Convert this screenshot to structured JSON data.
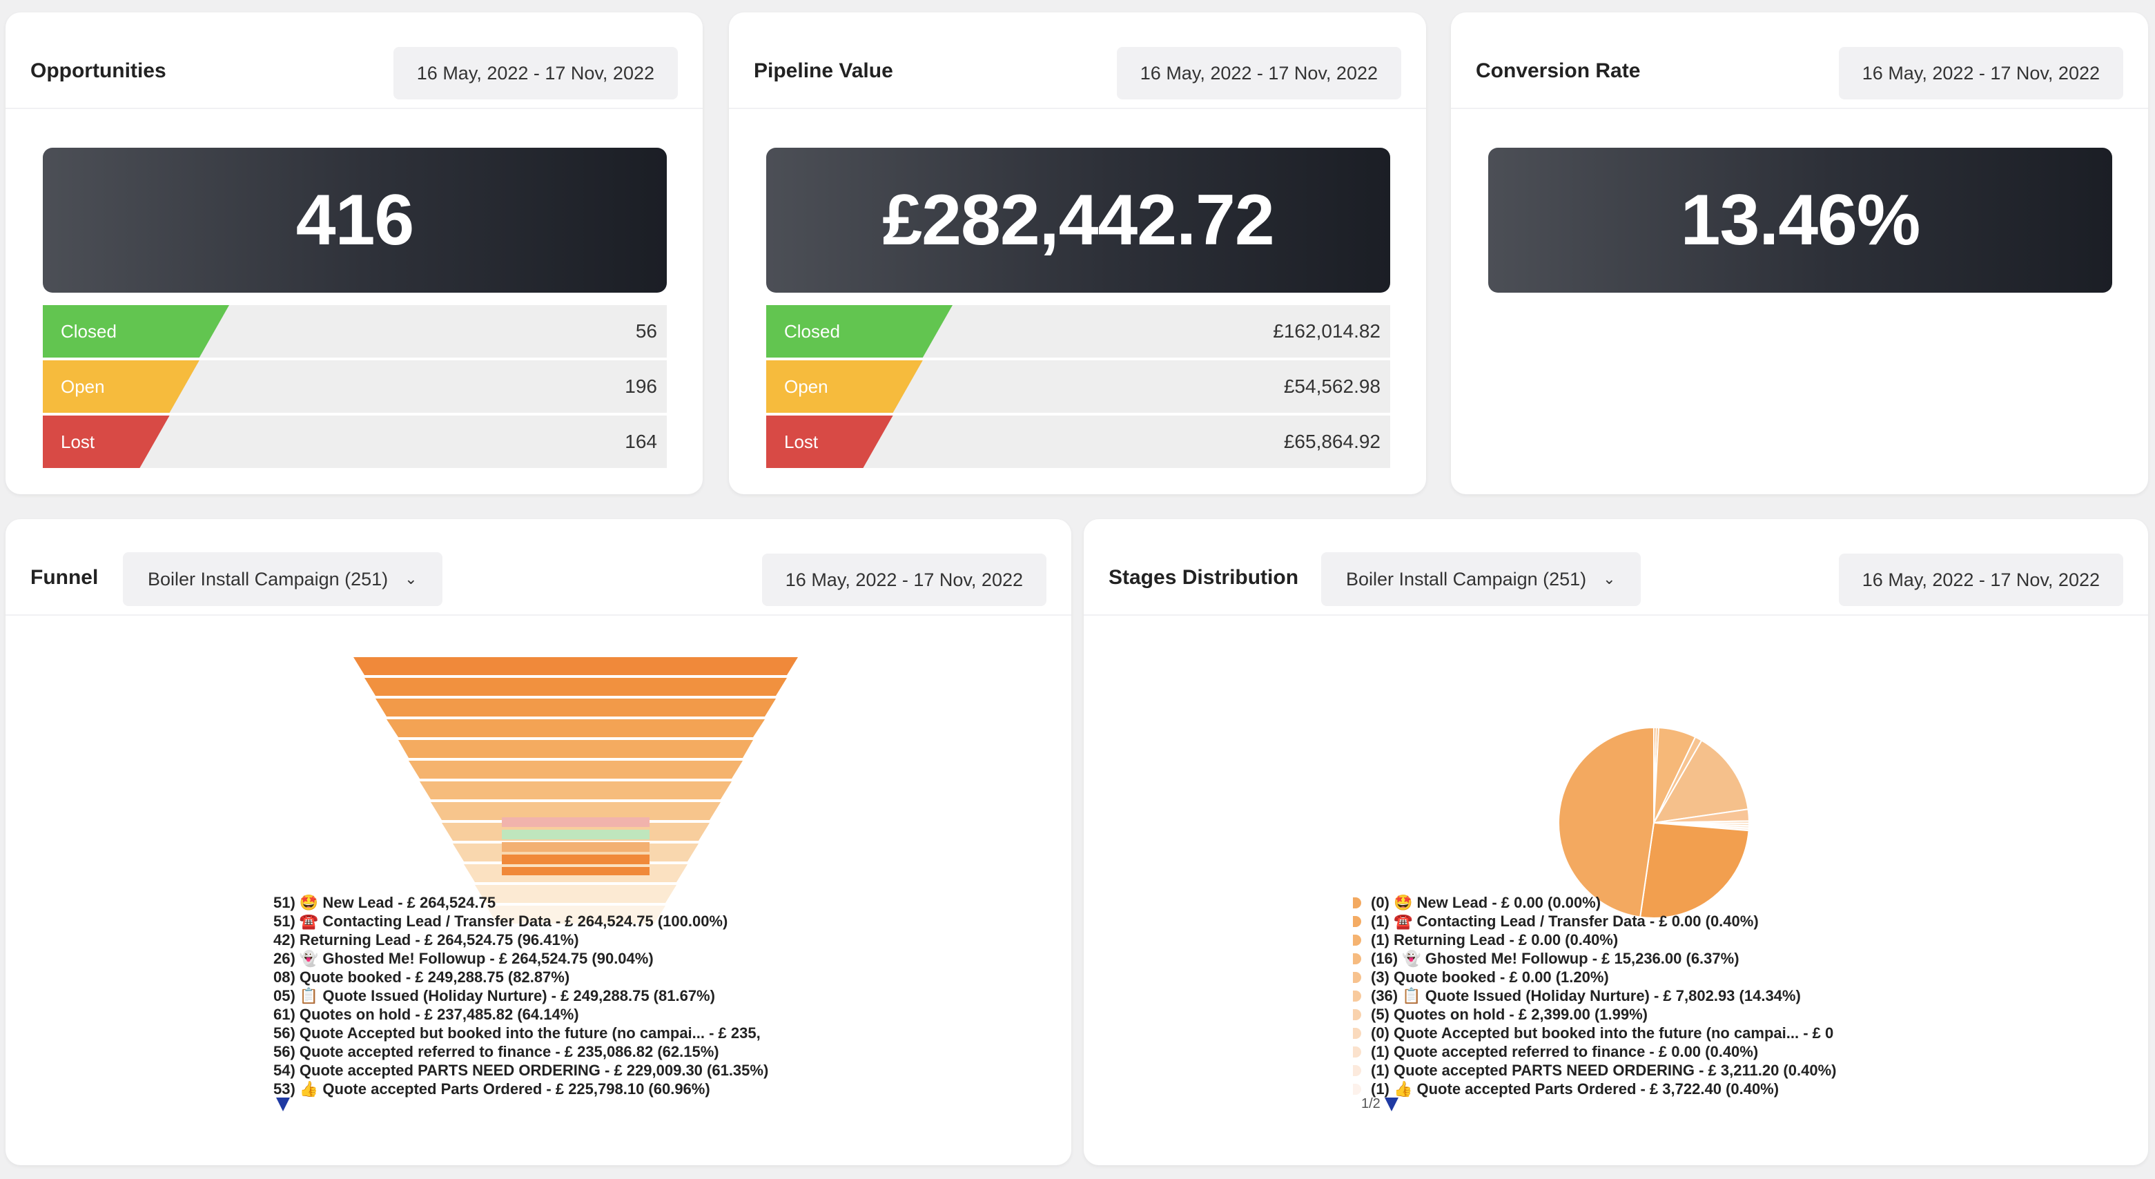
{
  "opportunities": {
    "title": "Opportunities",
    "date_range": "16 May, 2022 - 17 Nov, 2022",
    "total": "416",
    "rows": [
      {
        "label": "Closed",
        "value": "56"
      },
      {
        "label": "Open",
        "value": "196"
      },
      {
        "label": "Lost",
        "value": "164"
      }
    ]
  },
  "pipeline": {
    "title": "Pipeline Value",
    "date_range": "16 May, 2022 - 17 Nov, 2022",
    "total": "£282,442.72",
    "rows": [
      {
        "label": "Closed",
        "value": "£162,014.82"
      },
      {
        "label": "Open",
        "value": "£54,562.98"
      },
      {
        "label": "Lost",
        "value": "£65,864.92"
      }
    ]
  },
  "conversion": {
    "title": "Conversion Rate",
    "date_range": "16 May, 2022 - 17 Nov, 2022",
    "total": "13.46%"
  },
  "funnel": {
    "title": "Funnel",
    "campaign": "Boiler Install Campaign (251)",
    "date_range": "16 May, 2022 - 17 Nov, 2022",
    "legend": [
      "51) 🤩 New Lead - £ 264,524.75",
      "51) ☎️ Contacting Lead / Transfer Data - £ 264,524.75 (100.00%)",
      "42) Returning Lead - £ 264,524.75 (96.41%)",
      "26) 👻 Ghosted Me! Followup - £ 264,524.75 (90.04%)",
      "08) Quote booked - £ 249,288.75 (82.87%)",
      "05) 📋 Quote Issued (Holiday Nurture) - £ 249,288.75 (81.67%)",
      "61) Quotes on hold - £ 237,485.82 (64.14%)",
      "56) Quote Accepted but booked into the future (no campai... - £ 235,",
      "56) Quote accepted referred to finance - £ 235,086.82 (62.15%)",
      "54) Quote accepted PARTS NEED ORDERING - £ 229,009.30 (61.35%)",
      "53) 👍 Quote accepted Parts Ordered - £ 225,798.10 (60.96%)"
    ]
  },
  "stages": {
    "title": "Stages Distribution",
    "campaign": "Boiler Install Campaign (251)",
    "date_range": "16 May, 2022 - 17 Nov, 2022",
    "legend": [
      "(0) 🤩 New Lead - £ 0.00 (0.00%)",
      "(1) ☎️ Contacting Lead / Transfer Data - £ 0.00 (0.40%)",
      "(1) Returning Lead - £ 0.00 (0.40%)",
      "(16) 👻 Ghosted Me! Followup - £ 15,236.00 (6.37%)",
      "(3) Quote booked - £ 0.00 (1.20%)",
      "(36) 📋 Quote Issued (Holiday Nurture) - £ 7,802.93 (14.34%)",
      "(5) Quotes on hold - £ 2,399.00 (1.99%)",
      "(0) Quote Accepted but booked into the future (no campai... - £ 0",
      "(1) Quote accepted referred to finance - £ 0.00 (0.40%)",
      "(1) Quote accepted PARTS NEED ORDERING - £ 3,211.20 (0.40%)",
      "(1) 👍 Quote accepted Parts Ordered - £ 3,722.40 (0.40%)"
    ],
    "pager": "1/2",
    "pie_percent": [
      0.4,
      0.4,
      6.37,
      1.2,
      14.34,
      1.99,
      0.4,
      0.4,
      0.4,
      0.4,
      26.0,
      47.7
    ]
  },
  "colors": {
    "closed": "#62c550",
    "open": "#f6bb3d",
    "lost": "#d84a45",
    "funnel_orange": "#f0893a",
    "pie_main": "#f3a960"
  }
}
